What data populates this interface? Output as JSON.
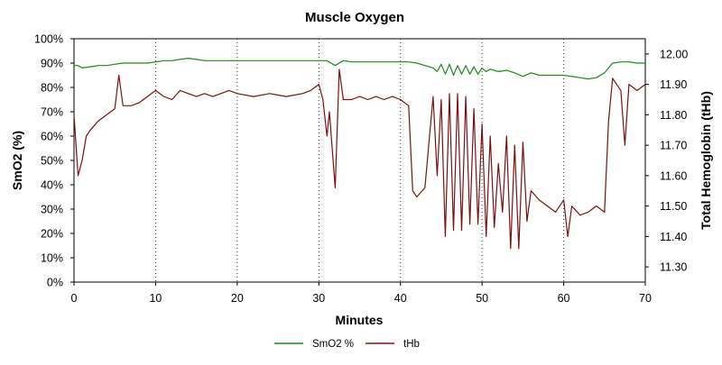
{
  "chart_data": {
    "type": "line",
    "title": "Muscle Oxygen",
    "xlabel": "Minutes",
    "ylabel_left": "SmO2 (%)",
    "ylabel_right": "Total Hemoglobin (tHb)",
    "xlim": [
      0,
      70
    ],
    "ylim_left": [
      0,
      100
    ],
    "ylim_right": [
      11.25,
      12.05
    ],
    "x_ticks": [
      0,
      10,
      20,
      30,
      40,
      50,
      60,
      70
    ],
    "x_tick_labels": [
      "0",
      "10",
      "20",
      "30",
      "40",
      "50",
      "60",
      "70"
    ],
    "y_left_ticks": [
      0,
      10,
      20,
      30,
      40,
      50,
      60,
      70,
      80,
      90,
      100
    ],
    "y_left_tick_labels": [
      "0%",
      "10%",
      "20%",
      "30%",
      "40%",
      "50%",
      "60%",
      "70%",
      "80%",
      "90%",
      "100%"
    ],
    "y_right_ticks": [
      11.3,
      11.4,
      11.5,
      11.6,
      11.7,
      11.8,
      11.9,
      12.0
    ],
    "y_right_tick_labels": [
      "11.30",
      "11.40",
      "11.50",
      "11.60",
      "11.70",
      "11.80",
      "11.90",
      "12.00"
    ],
    "grid": "vertical dotted at x ticks",
    "legend_position": "bottom",
    "series": [
      {
        "name": "SmO2 %",
        "color": "#1a8a1a",
        "axis": "left",
        "x": [
          0,
          0.5,
          1,
          2,
          3,
          4,
          5,
          6,
          7,
          8,
          9,
          10,
          11,
          12,
          13,
          14,
          15,
          16,
          18,
          20,
          22,
          24,
          26,
          28,
          30,
          31,
          32,
          33,
          34,
          36,
          38,
          40,
          41,
          42,
          43,
          44,
          44.5,
          45,
          45.5,
          46,
          46.5,
          47,
          47.5,
          48,
          48.5,
          49,
          49.5,
          50,
          50.5,
          51,
          52,
          53,
          54,
          55,
          56,
          57,
          58,
          59,
          60,
          61,
          62,
          63,
          64,
          65,
          65.5,
          66,
          67,
          68,
          69,
          70
        ],
        "values": [
          89,
          89,
          88,
          88.5,
          89,
          89,
          89.5,
          90,
          90,
          90,
          90,
          90.5,
          91,
          91,
          91.5,
          92,
          91.5,
          91,
          91,
          91,
          91,
          91,
          91,
          91,
          91,
          91,
          89,
          91,
          90.5,
          90.5,
          90.5,
          90.5,
          90.5,
          90,
          89,
          88,
          86.5,
          89.5,
          85.5,
          89.5,
          85,
          89,
          85.5,
          89,
          85.5,
          88.5,
          85.5,
          88,
          86.5,
          87.5,
          86.5,
          87,
          86,
          84.5,
          86,
          85,
          85,
          85,
          85,
          84.5,
          84,
          83.5,
          84,
          86,
          88,
          90,
          90.5,
          90.5,
          90,
          90
        ]
      },
      {
        "name": "tHb",
        "color": "#7a1010",
        "axis": "right",
        "x": [
          0,
          0.5,
          1,
          1.5,
          2,
          3,
          4,
          5,
          5.5,
          6,
          7,
          8,
          9,
          10,
          11,
          12,
          13,
          14,
          15,
          16,
          17,
          18,
          19,
          20,
          22,
          24,
          26,
          28,
          29,
          30,
          30.5,
          31,
          31.3,
          32,
          32.5,
          33,
          34,
          35,
          36,
          37,
          38,
          39,
          40,
          41,
          41.5,
          42,
          43,
          44,
          44.5,
          45,
          45.5,
          46,
          46.5,
          47,
          47.5,
          48,
          48.5,
          49,
          49.5,
          50,
          50.5,
          51,
          51.5,
          52,
          52.5,
          53,
          53.5,
          54,
          54.5,
          55,
          55.5,
          56,
          57,
          58,
          59,
          60,
          60.5,
          61,
          62,
          63,
          64,
          65,
          65.5,
          66,
          67,
          67.5,
          68,
          69,
          70
        ],
        "values": [
          11.8,
          11.6,
          11.65,
          11.73,
          11.75,
          11.78,
          11.8,
          11.82,
          11.93,
          11.83,
          11.83,
          11.84,
          11.86,
          11.88,
          11.86,
          11.85,
          11.88,
          11.87,
          11.86,
          11.87,
          11.86,
          11.87,
          11.88,
          11.87,
          11.86,
          11.87,
          11.86,
          11.87,
          11.88,
          11.9,
          11.85,
          11.73,
          11.81,
          11.56,
          11.95,
          11.85,
          11.85,
          11.86,
          11.85,
          11.86,
          11.85,
          11.86,
          11.85,
          11.83,
          11.55,
          11.53,
          11.56,
          11.86,
          11.6,
          11.85,
          11.4,
          11.87,
          11.42,
          11.87,
          11.42,
          11.86,
          11.44,
          11.82,
          11.44,
          11.77,
          11.4,
          11.73,
          11.43,
          11.64,
          11.48,
          11.73,
          11.36,
          11.7,
          11.36,
          11.71,
          11.45,
          11.55,
          11.52,
          11.5,
          11.48,
          11.52,
          11.4,
          11.5,
          11.47,
          11.48,
          11.5,
          11.48,
          11.78,
          11.92,
          11.88,
          11.7,
          11.9,
          11.88,
          11.9
        ]
      }
    ]
  }
}
